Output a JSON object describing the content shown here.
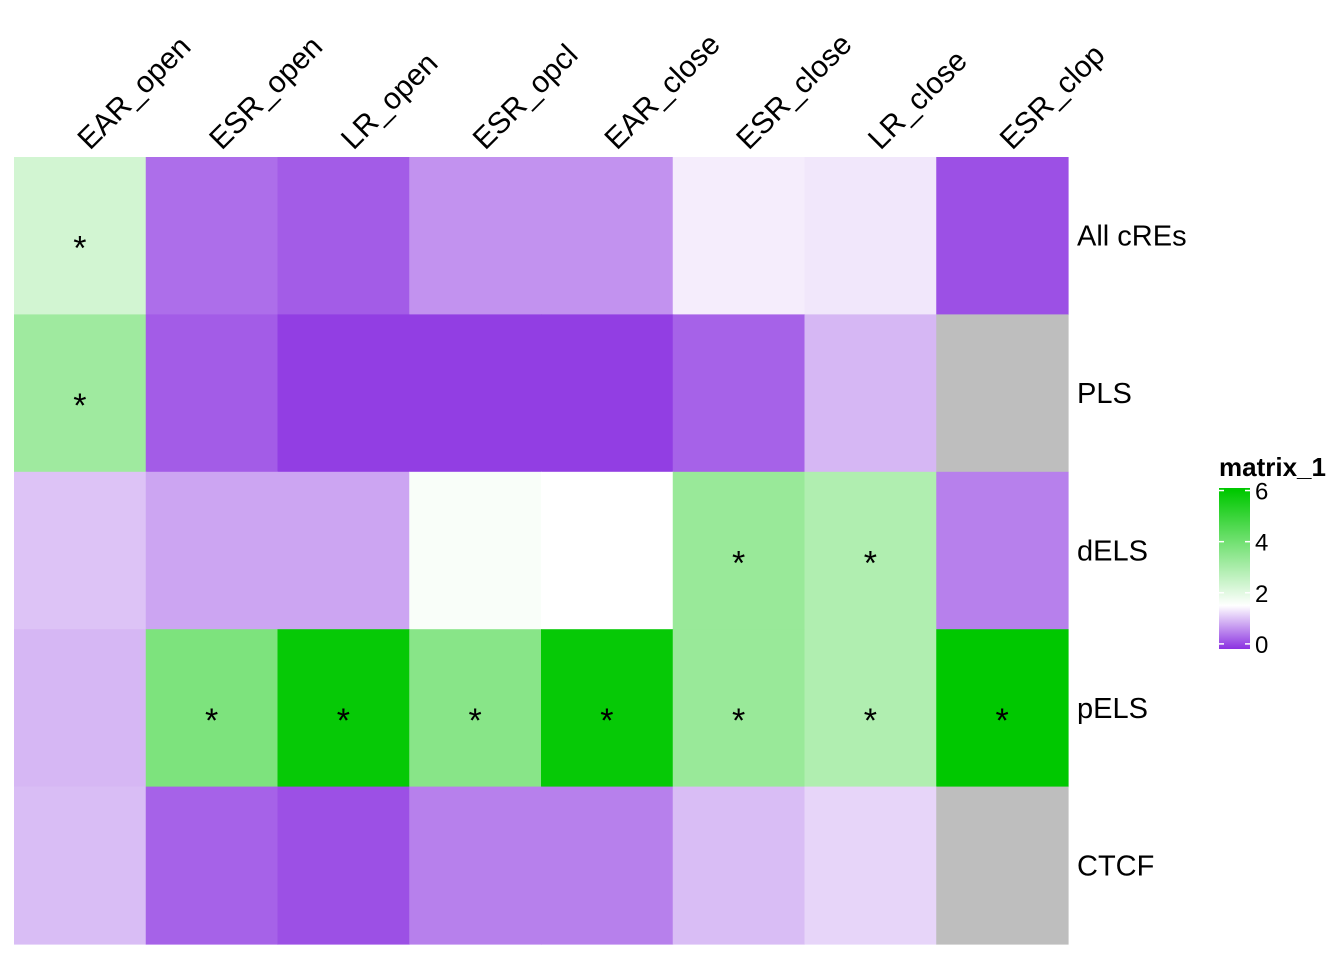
{
  "chart_data": {
    "type": "heatmap",
    "legend": {
      "title": "matrix_1",
      "ticks": [
        "0",
        "2",
        "4",
        "6"
      ],
      "range": [
        -0.2,
        6.1
      ],
      "colors": [
        {
          "value": -0.2,
          "color": "#8B32E1"
        },
        {
          "value": 1.5,
          "color": "#FFFFFF"
        },
        {
          "value": 6.0,
          "color": "#00C800"
        }
      ],
      "na_color": "#BEBEBE",
      "placement": "right"
    },
    "columns": [
      "EAR_open",
      "ESR_open",
      "LR_open",
      "ESR_opcl",
      "EAR_close",
      "ESR_close",
      "LR_close",
      "ESR_clop"
    ],
    "rows": [
      "All cREs",
      "PLS",
      "dELS",
      "pELS",
      "CTCF"
    ],
    "values": [
      [
        2.3,
        0.3,
        0.15,
        0.6,
        0.6,
        1.35,
        1.3,
        0.05
      ],
      [
        3.2,
        0.15,
        -0.1,
        -0.1,
        -0.1,
        0.2,
        0.9,
        null
      ],
      [
        1.0,
        0.75,
        0.75,
        1.6,
        1.5,
        3.3,
        2.9,
        0.45
      ],
      [
        0.9,
        3.8,
        5.9,
        3.6,
        5.9,
        3.3,
        2.9,
        6.0
      ],
      [
        0.95,
        0.2,
        0.05,
        0.45,
        0.45,
        0.95,
        1.15,
        null
      ]
    ],
    "significant": [
      [
        true,
        false,
        false,
        false,
        false,
        false,
        false,
        false
      ],
      [
        true,
        false,
        false,
        false,
        false,
        false,
        false,
        false
      ],
      [
        false,
        false,
        false,
        false,
        false,
        true,
        true,
        false
      ],
      [
        false,
        true,
        true,
        true,
        true,
        true,
        true,
        true
      ],
      [
        false,
        false,
        false,
        false,
        false,
        false,
        false,
        false
      ]
    ],
    "marker": "*"
  }
}
